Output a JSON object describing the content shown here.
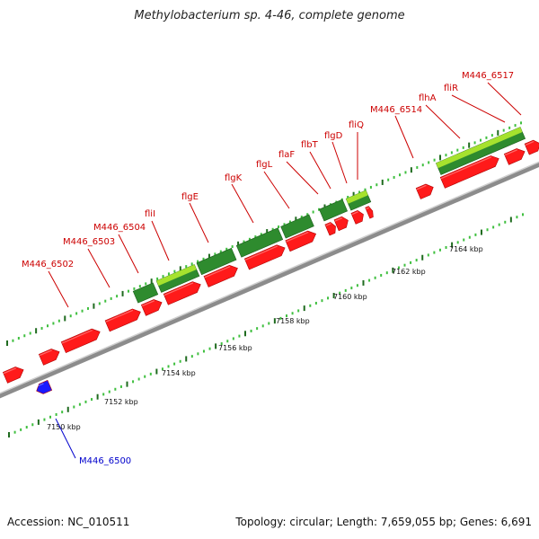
{
  "title": "Methylobacterium sp. 4-46, complete genome",
  "footer": {
    "accession": "Accession: NC_010511",
    "summary": "Topology: circular; Length: 7,659,055 bp; Genes: 6,691"
  },
  "colors": {
    "forward_gene": "#ff1a1a",
    "reverse_gene": "#1a1aff",
    "operon_dark": "#2e8b2e",
    "operon_light": "#a6e22e",
    "backbone": "#8c8c8c",
    "tick_dark": "#1f6b1f",
    "tick_light": "#3fbf3f",
    "label_red": "#cc0000",
    "label_blue": "#0000cc"
  },
  "axis": {
    "unit": "kbp",
    "ticks": [
      "7150 kbp",
      "7152 kbp",
      "7154 kbp",
      "7156 kbp",
      "7158 kbp",
      "7160 kbp",
      "7162 kbp",
      "7164 kbp"
    ]
  },
  "gene_labels": [
    {
      "id": "M446_6502",
      "text": "M446_6502",
      "strand": "forward"
    },
    {
      "id": "M446_6503",
      "text": "M446_6503",
      "strand": "forward"
    },
    {
      "id": "M446_6504",
      "text": "M446_6504",
      "strand": "forward"
    },
    {
      "id": "fliI",
      "text": "fliI",
      "strand": "forward"
    },
    {
      "id": "flgE",
      "text": "flgE",
      "strand": "forward"
    },
    {
      "id": "flgK",
      "text": "flgK",
      "strand": "forward"
    },
    {
      "id": "flgL",
      "text": "flgL",
      "strand": "forward"
    },
    {
      "id": "flaF",
      "text": "flaF",
      "strand": "forward"
    },
    {
      "id": "flbT",
      "text": "flbT",
      "strand": "forward"
    },
    {
      "id": "flgD",
      "text": "flgD",
      "strand": "forward"
    },
    {
      "id": "fliQ",
      "text": "fliQ",
      "strand": "forward"
    },
    {
      "id": "M446_6514",
      "text": "M446_6514",
      "strand": "forward"
    },
    {
      "id": "flhA",
      "text": "flhA",
      "strand": "forward"
    },
    {
      "id": "fliR",
      "text": "fliR",
      "strand": "forward"
    },
    {
      "id": "M446_6517",
      "text": "M446_6517",
      "strand": "forward"
    },
    {
      "id": "M446_6500",
      "text": "M446_6500",
      "strand": "reverse"
    }
  ]
}
